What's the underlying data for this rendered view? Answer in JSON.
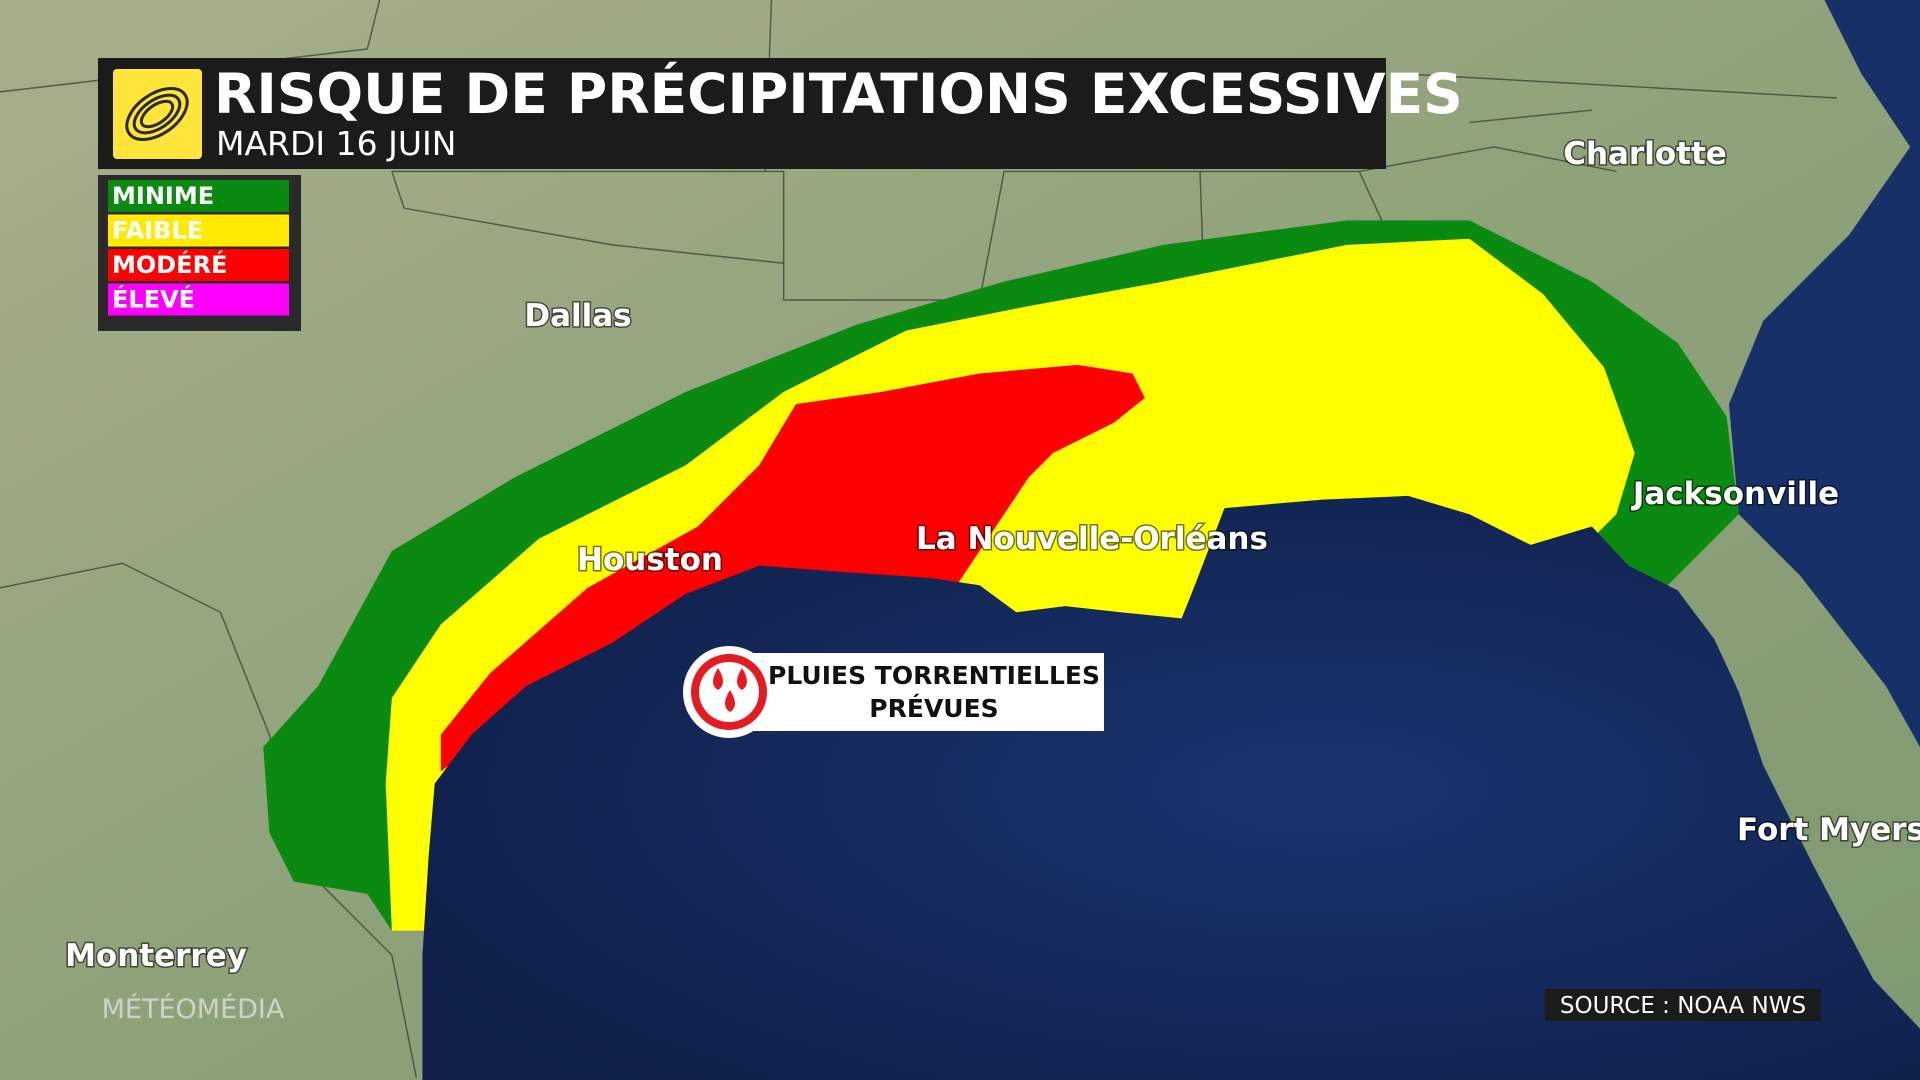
{
  "header": {
    "title": "RISQUE DE PRÉCIPITATIONS EXCESSIVES",
    "subtitle": "MARDI 16 JUIN"
  },
  "legend": {
    "items": [
      {
        "label": "MINIME",
        "color": "#0b8a12"
      },
      {
        "label": "FAIBLE",
        "color": "#ffea00"
      },
      {
        "label": "MODÉRÉ",
        "color": "#ff0000"
      },
      {
        "label": "ÉLEVÉ",
        "color": "#ff00ff"
      }
    ]
  },
  "cities": [
    "Charlotte",
    "Dallas",
    "Houston",
    "La Nouvelle-Orléans",
    "Jacksonville",
    "Fort Myers",
    "Monterrey"
  ],
  "callout": {
    "lines": [
      "PLUIES TORRENTIELLES",
      "PRÉVUES"
    ]
  },
  "source": "SOURCE : NOAA NWS",
  "watermark": "MÉTÉOMÉDIA"
}
